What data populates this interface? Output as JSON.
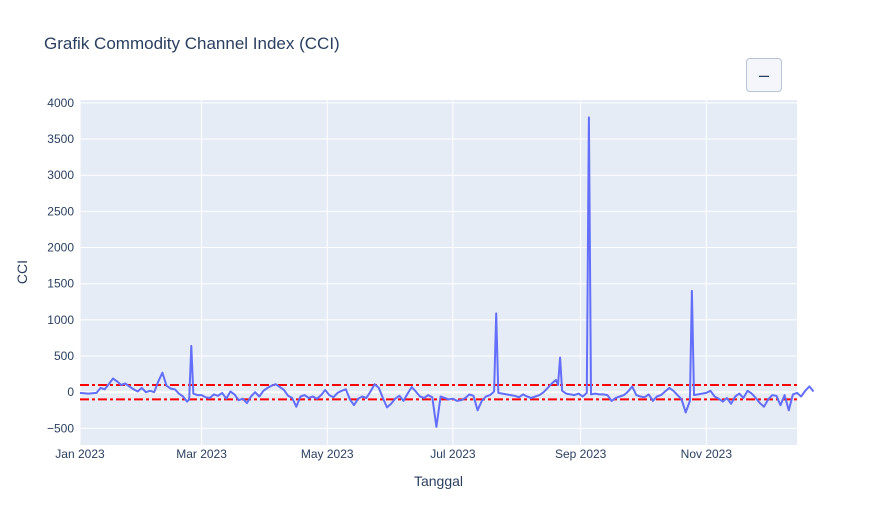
{
  "chart_data": {
    "type": "line",
    "title": "Grafik Commodity Channel Index (CCI)",
    "xlabel": "Tanggal",
    "ylabel": "CCI",
    "xlim": [
      "2023-01-01",
      "2023-12-15"
    ],
    "ylim": [
      -730,
      4040
    ],
    "x_tick_labels": [
      "Jan 2023",
      "Mar 2023",
      "May 2023",
      "Jul 2023",
      "Sep 2023",
      "Nov 2023"
    ],
    "x_ticks": [
      "2023-01-01",
      "2023-03-01",
      "2023-05-01",
      "2023-07-01",
      "2023-09-01",
      "2023-11-01"
    ],
    "y_ticks": [
      -500,
      0,
      500,
      1000,
      1500,
      2000,
      2500,
      3000,
      3500,
      4000
    ],
    "grid": true,
    "reference_lines": [
      {
        "y": 100,
        "color": "#ff0000",
        "style": "dashdot"
      },
      {
        "y": -100,
        "color": "#ff0000",
        "style": "dashdot"
      }
    ],
    "series": [
      {
        "color": "#636efa",
        "points": [
          [
            "2023-01-01",
            -10
          ],
          [
            "2023-01-05",
            -20
          ],
          [
            "2023-01-09",
            -10
          ],
          [
            "2023-01-11",
            60
          ],
          [
            "2023-01-13",
            40
          ],
          [
            "2023-01-15",
            110
          ],
          [
            "2023-01-17",
            190
          ],
          [
            "2023-01-19",
            150
          ],
          [
            "2023-01-21",
            100
          ],
          [
            "2023-01-23",
            120
          ],
          [
            "2023-01-25",
            80
          ],
          [
            "2023-01-27",
            40
          ],
          [
            "2023-01-29",
            10
          ],
          [
            "2023-01-31",
            60
          ],
          [
            "2023-02-02",
            0
          ],
          [
            "2023-02-04",
            20
          ],
          [
            "2023-02-06",
            0
          ],
          [
            "2023-02-08",
            150
          ],
          [
            "2023-02-10",
            270
          ],
          [
            "2023-02-12",
            90
          ],
          [
            "2023-02-14",
            50
          ],
          [
            "2023-02-16",
            40
          ],
          [
            "2023-02-18",
            -20
          ],
          [
            "2023-02-20",
            -60
          ],
          [
            "2023-02-22",
            -130
          ],
          [
            "2023-02-23",
            -100
          ],
          [
            "2023-02-24",
            640
          ],
          [
            "2023-02-25",
            -20
          ],
          [
            "2023-02-27",
            -40
          ],
          [
            "2023-03-01",
            -40
          ],
          [
            "2023-03-03",
            -70
          ],
          [
            "2023-03-05",
            -80
          ],
          [
            "2023-03-07",
            -30
          ],
          [
            "2023-03-09",
            -50
          ],
          [
            "2023-03-11",
            -10
          ],
          [
            "2023-03-13",
            -90
          ],
          [
            "2023-03-15",
            10
          ],
          [
            "2023-03-17",
            -30
          ],
          [
            "2023-03-19",
            -110
          ],
          [
            "2023-03-21",
            -90
          ],
          [
            "2023-03-23",
            -150
          ],
          [
            "2023-03-25",
            -60
          ],
          [
            "2023-03-27",
            0
          ],
          [
            "2023-03-29",
            -60
          ],
          [
            "2023-03-31",
            20
          ],
          [
            "2023-04-02",
            60
          ],
          [
            "2023-04-04",
            90
          ],
          [
            "2023-04-06",
            110
          ],
          [
            "2023-04-08",
            70
          ],
          [
            "2023-04-10",
            30
          ],
          [
            "2023-04-12",
            -50
          ],
          [
            "2023-04-14",
            -80
          ],
          [
            "2023-04-16",
            -200
          ],
          [
            "2023-04-18",
            -60
          ],
          [
            "2023-04-20",
            -40
          ],
          [
            "2023-04-22",
            -80
          ],
          [
            "2023-04-24",
            -60
          ],
          [
            "2023-04-26",
            -90
          ],
          [
            "2023-04-28",
            -40
          ],
          [
            "2023-04-30",
            30
          ],
          [
            "2023-05-02",
            -40
          ],
          [
            "2023-05-04",
            -70
          ],
          [
            "2023-05-06",
            -10
          ],
          [
            "2023-05-08",
            20
          ],
          [
            "2023-05-10",
            40
          ],
          [
            "2023-05-12",
            -100
          ],
          [
            "2023-05-14",
            -180
          ],
          [
            "2023-05-16",
            -90
          ],
          [
            "2023-05-18",
            -60
          ],
          [
            "2023-05-20",
            -80
          ],
          [
            "2023-05-22",
            10
          ],
          [
            "2023-05-24",
            110
          ],
          [
            "2023-05-26",
            60
          ],
          [
            "2023-05-28",
            -80
          ],
          [
            "2023-05-30",
            -210
          ],
          [
            "2023-06-01",
            -160
          ],
          [
            "2023-06-03",
            -90
          ],
          [
            "2023-06-05",
            -50
          ],
          [
            "2023-06-07",
            -120
          ],
          [
            "2023-06-09",
            -20
          ],
          [
            "2023-06-11",
            70
          ],
          [
            "2023-06-13",
            10
          ],
          [
            "2023-06-15",
            -60
          ],
          [
            "2023-06-17",
            -80
          ],
          [
            "2023-06-19",
            -40
          ],
          [
            "2023-06-21",
            -70
          ],
          [
            "2023-06-23",
            -480
          ],
          [
            "2023-06-25",
            -60
          ],
          [
            "2023-06-27",
            -80
          ],
          [
            "2023-06-29",
            -100
          ],
          [
            "2023-07-01",
            -90
          ],
          [
            "2023-07-03",
            -120
          ],
          [
            "2023-07-05",
            -110
          ],
          [
            "2023-07-07",
            -80
          ],
          [
            "2023-07-09",
            -30
          ],
          [
            "2023-07-11",
            -50
          ],
          [
            "2023-07-13",
            -250
          ],
          [
            "2023-07-15",
            -120
          ],
          [
            "2023-07-17",
            -60
          ],
          [
            "2023-07-19",
            -40
          ],
          [
            "2023-07-21",
            10
          ],
          [
            "2023-07-22",
            1090
          ],
          [
            "2023-07-23",
            -10
          ],
          [
            "2023-07-25",
            -20
          ],
          [
            "2023-07-27",
            -30
          ],
          [
            "2023-07-29",
            -40
          ],
          [
            "2023-07-31",
            -50
          ],
          [
            "2023-08-02",
            -70
          ],
          [
            "2023-08-04",
            -30
          ],
          [
            "2023-08-06",
            -60
          ],
          [
            "2023-08-08",
            -80
          ],
          [
            "2023-08-10",
            -60
          ],
          [
            "2023-08-12",
            -40
          ],
          [
            "2023-08-14",
            0
          ],
          [
            "2023-08-16",
            60
          ],
          [
            "2023-08-18",
            120
          ],
          [
            "2023-08-20",
            170
          ],
          [
            "2023-08-21",
            100
          ],
          [
            "2023-08-22",
            480
          ],
          [
            "2023-08-23",
            20
          ],
          [
            "2023-08-25",
            -20
          ],
          [
            "2023-08-27",
            -30
          ],
          [
            "2023-08-29",
            -40
          ],
          [
            "2023-08-31",
            -20
          ],
          [
            "2023-09-02",
            -60
          ],
          [
            "2023-09-04",
            -10
          ],
          [
            "2023-09-05",
            3800
          ],
          [
            "2023-09-06",
            -30
          ],
          [
            "2023-09-08",
            -20
          ],
          [
            "2023-09-10",
            -30
          ],
          [
            "2023-09-12",
            -30
          ],
          [
            "2023-09-14",
            -40
          ],
          [
            "2023-09-16",
            -120
          ],
          [
            "2023-09-18",
            -80
          ],
          [
            "2023-09-20",
            -60
          ],
          [
            "2023-09-22",
            -40
          ],
          [
            "2023-09-24",
            10
          ],
          [
            "2023-09-26",
            80
          ],
          [
            "2023-09-28",
            -40
          ],
          [
            "2023-09-30",
            -60
          ],
          [
            "2023-10-02",
            -70
          ],
          [
            "2023-10-04",
            -30
          ],
          [
            "2023-10-06",
            -120
          ],
          [
            "2023-10-08",
            -60
          ],
          [
            "2023-10-10",
            -40
          ],
          [
            "2023-10-12",
            10
          ],
          [
            "2023-10-14",
            60
          ],
          [
            "2023-10-16",
            20
          ],
          [
            "2023-10-18",
            -40
          ],
          [
            "2023-10-20",
            -100
          ],
          [
            "2023-10-22",
            -280
          ],
          [
            "2023-10-24",
            -120
          ],
          [
            "2023-10-25",
            1400
          ],
          [
            "2023-10-26",
            -40
          ],
          [
            "2023-10-28",
            -30
          ],
          [
            "2023-10-30",
            -20
          ],
          [
            "2023-11-01",
            -10
          ],
          [
            "2023-11-03",
            20
          ],
          [
            "2023-11-05",
            -60
          ],
          [
            "2023-11-07",
            -90
          ],
          [
            "2023-11-09",
            -130
          ],
          [
            "2023-11-11",
            -80
          ],
          [
            "2023-11-13",
            -160
          ],
          [
            "2023-11-15",
            -60
          ],
          [
            "2023-11-17",
            -20
          ],
          [
            "2023-11-19",
            -80
          ],
          [
            "2023-11-21",
            20
          ],
          [
            "2023-11-23",
            -20
          ],
          [
            "2023-11-25",
            -80
          ],
          [
            "2023-11-27",
            -150
          ],
          [
            "2023-11-29",
            -200
          ],
          [
            "2023-12-01",
            -100
          ],
          [
            "2023-12-03",
            -40
          ],
          [
            "2023-12-05",
            -50
          ],
          [
            "2023-12-07",
            -180
          ],
          [
            "2023-12-09",
            -40
          ],
          [
            "2023-12-11",
            -250
          ],
          [
            "2023-12-13",
            -30
          ],
          [
            "2023-12-15",
            -10
          ],
          [
            "2023-12-17",
            -60
          ],
          [
            "2023-12-19",
            20
          ],
          [
            "2023-12-21",
            80
          ],
          [
            "2023-12-23",
            10
          ]
        ]
      }
    ]
  },
  "toolbar": {
    "menu_label": "–"
  }
}
